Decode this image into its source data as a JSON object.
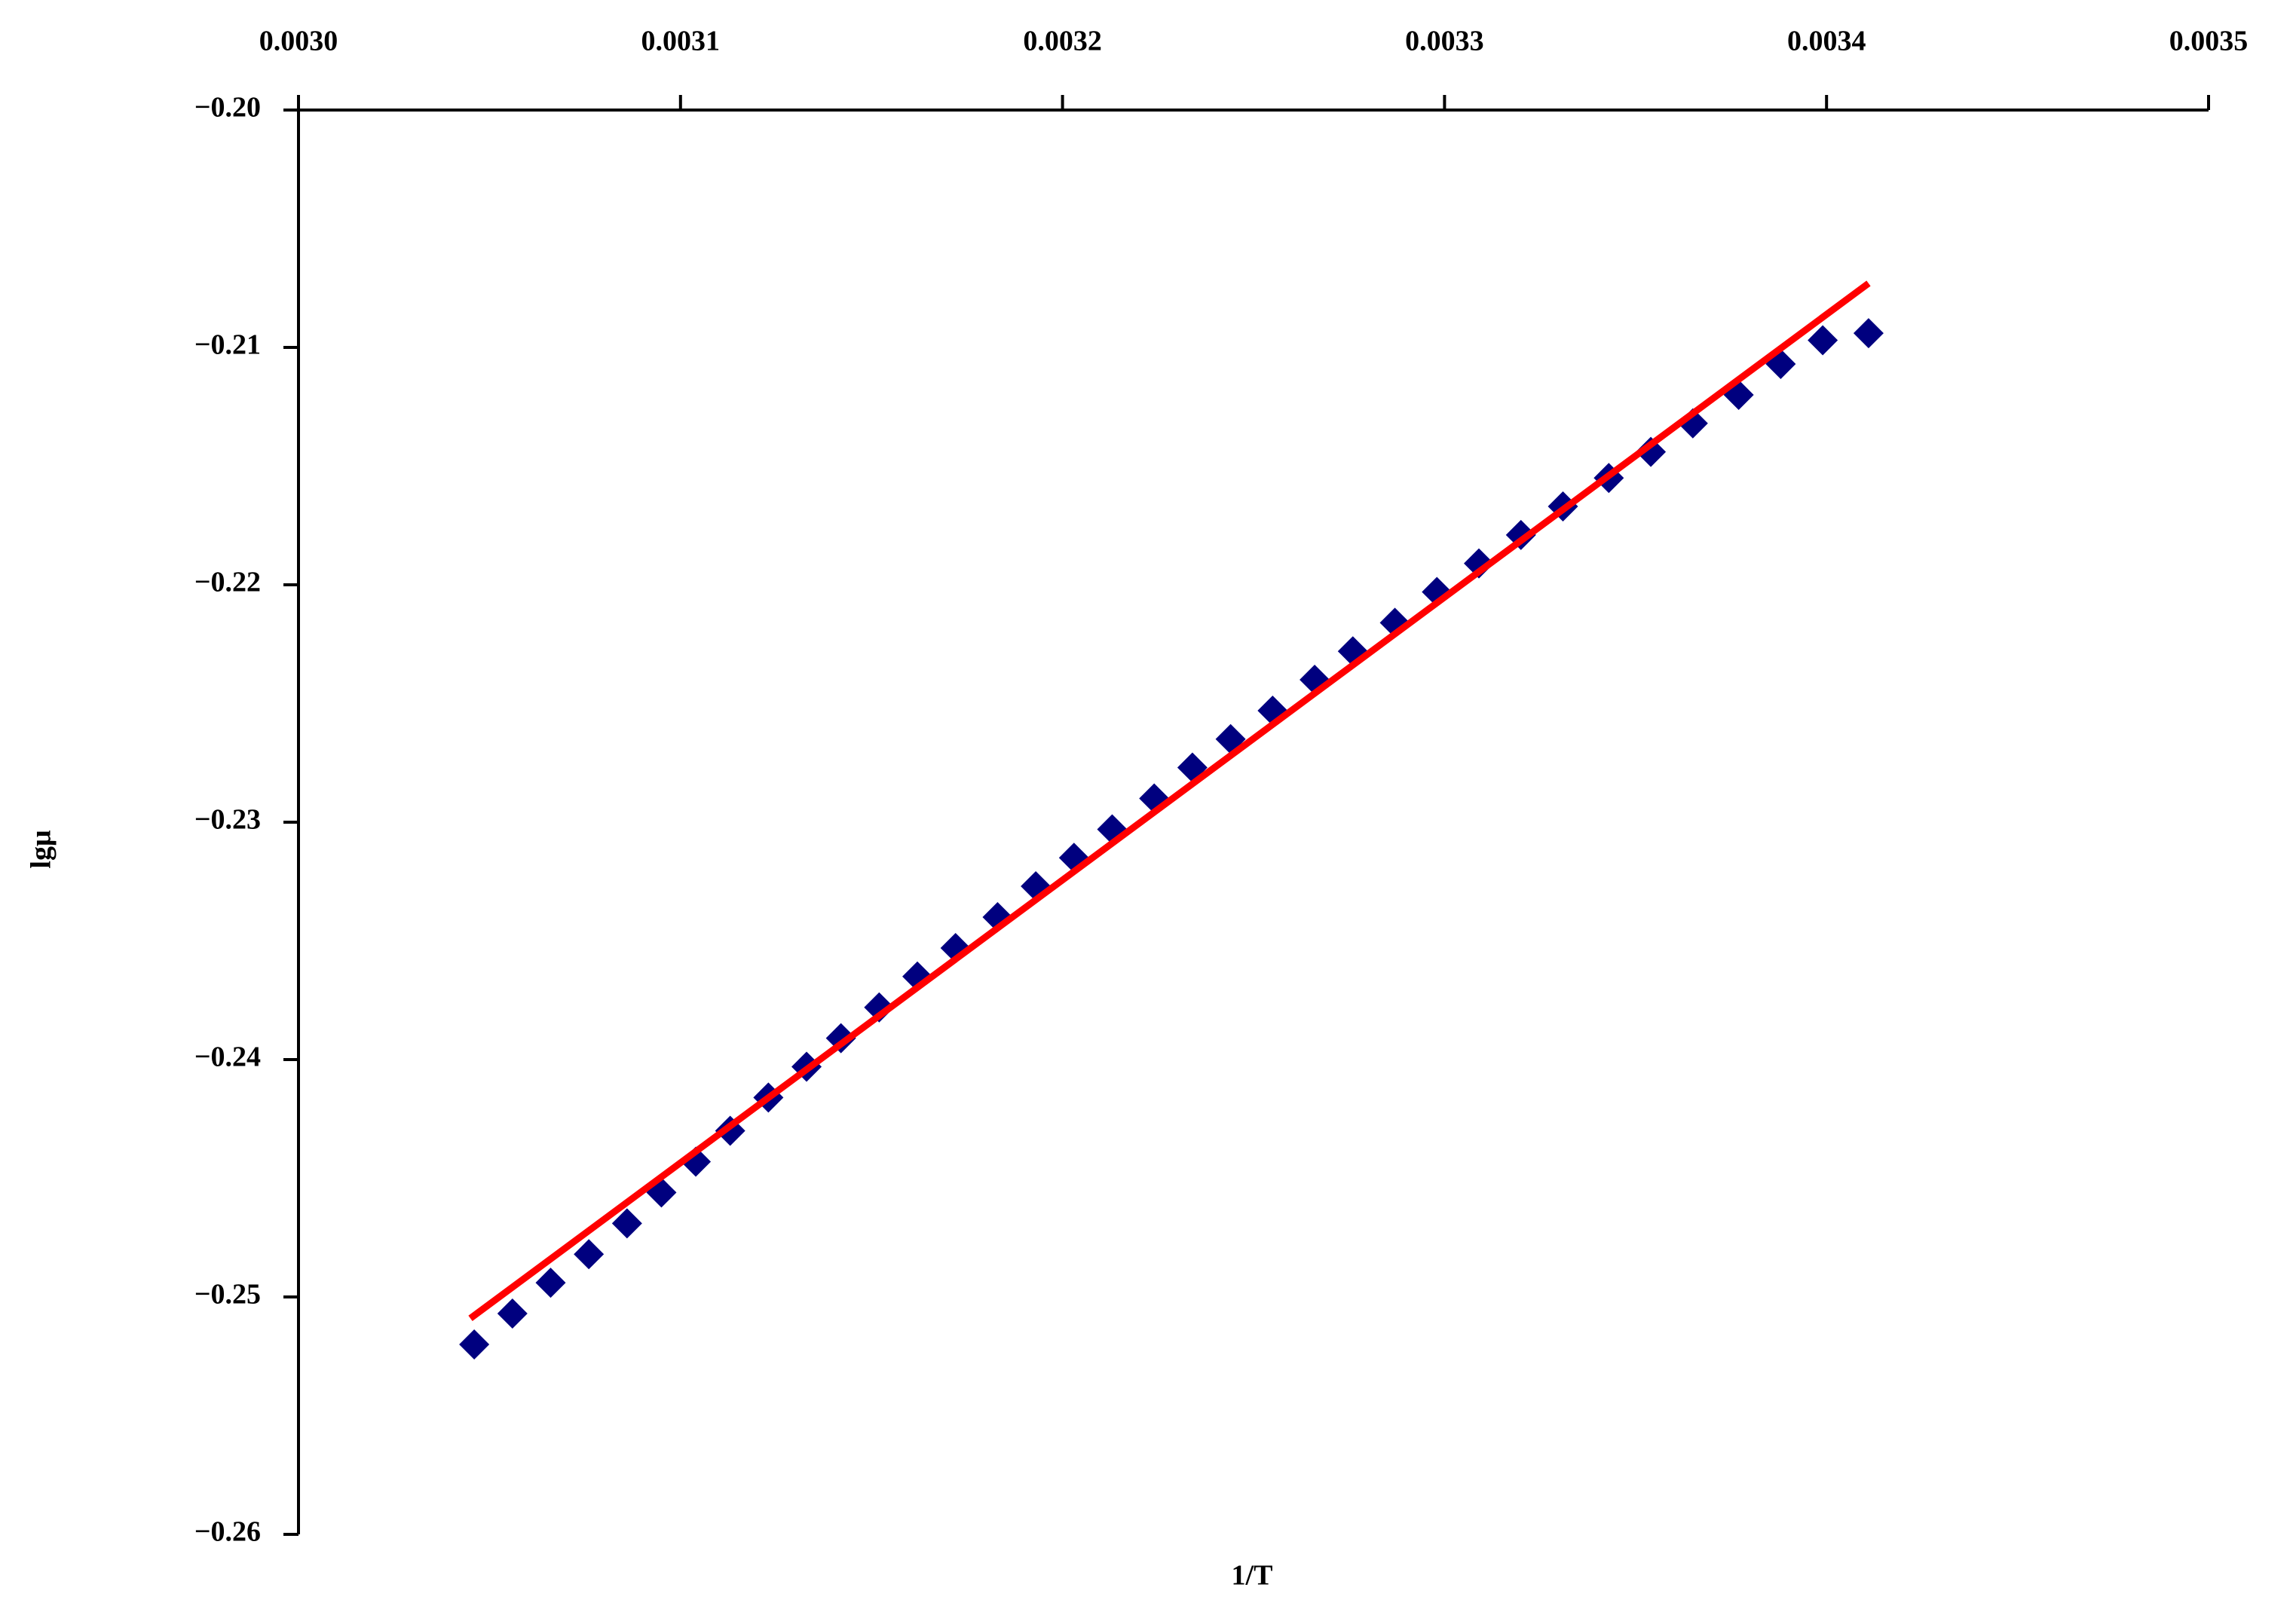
{
  "chart_data": {
    "type": "scatter",
    "x_label": "1/T",
    "y_label": "lgμ",
    "x_axis_position": "top",
    "grid": false,
    "xlim": [
      0.003,
      0.0035
    ],
    "ylim": [
      -0.26,
      -0.2
    ],
    "xticks": [
      {
        "value": 0.003,
        "label": "0.0030"
      },
      {
        "value": 0.0031,
        "label": "0.0031"
      },
      {
        "value": 0.0032,
        "label": "0.0032"
      },
      {
        "value": 0.0033,
        "label": "0.0033"
      },
      {
        "value": 0.0034,
        "label": "0.0034"
      },
      {
        "value": 0.0035,
        "label": "0.0035"
      }
    ],
    "yticks": [
      {
        "value": -0.2,
        "label": "−0.20"
      },
      {
        "value": -0.21,
        "label": "−0.21"
      },
      {
        "value": -0.22,
        "label": "−0.22"
      },
      {
        "value": -0.23,
        "label": "−0.23"
      },
      {
        "value": -0.24,
        "label": "−0.24"
      },
      {
        "value": -0.25,
        "label": "−0.25"
      },
      {
        "value": -0.26,
        "label": "−0.26"
      }
    ],
    "series": [
      {
        "type": "scatter",
        "color": "#00007f",
        "x": [
          0.003046,
          0.003056,
          0.003066,
          0.003076,
          0.003086,
          0.003095,
          0.003104,
          0.003113,
          0.003123,
          0.003133,
          0.003142,
          0.003152,
          0.003162,
          0.003172,
          0.003183,
          0.003193,
          0.003203,
          0.003213,
          0.003224,
          0.003234,
          0.003244,
          0.003255,
          0.003266,
          0.003276,
          0.003287,
          0.003298,
          0.003309,
          0.00332,
          0.003331,
          0.003343,
          0.003354,
          0.003365,
          0.003377,
          0.003388,
          0.003399,
          0.003411
        ],
        "values": [
          -0.252,
          -0.2507,
          -0.2494,
          -0.2482,
          -0.2469,
          -0.2456,
          -0.2443,
          -0.243,
          -0.2416,
          -0.2403,
          -0.2391,
          -0.2378,
          -0.2365,
          -0.2353,
          -0.234,
          -0.2327,
          -0.2315,
          -0.2303,
          -0.229,
          -0.2277,
          -0.2265,
          -0.2253,
          -0.224,
          -0.2228,
          -0.2216,
          -0.2203,
          -0.2191,
          -0.2179,
          -0.2167,
          -0.2155,
          -0.2144,
          -0.2132,
          -0.212,
          -0.2107,
          -0.2097,
          -0.2094
        ]
      },
      {
        "type": "line",
        "color": "#ff0000",
        "x": [
          0.003045,
          0.003411
        ],
        "values": [
          -0.2509,
          -0.2073
        ]
      }
    ]
  }
}
